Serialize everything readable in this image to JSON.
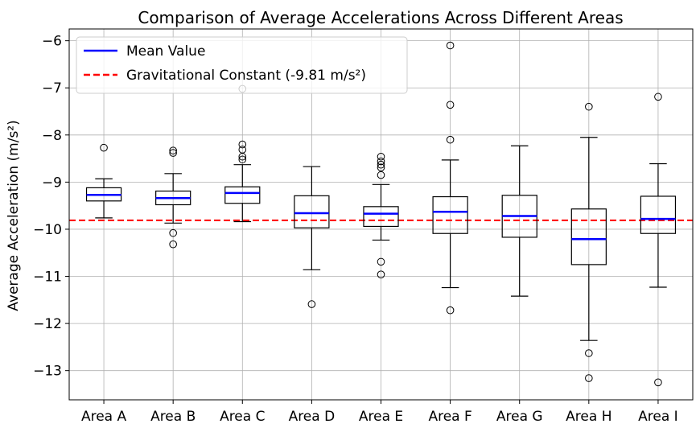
{
  "chart_data": {
    "type": "box",
    "title": "Comparison of Average Accelerations Across Different Areas",
    "xlabel": "",
    "ylabel": "Average Acceleration (m/s²)",
    "ylim": [
      -13.62,
      -5.75
    ],
    "yticks": [
      -6,
      -7,
      -8,
      -9,
      -10,
      -11,
      -12,
      -13
    ],
    "ytick_labels": [
      "−6",
      "−7",
      "−8",
      "−9",
      "−10",
      "−11",
      "−12",
      "−13"
    ],
    "grid": true,
    "legend_position": "top-left",
    "legend": [
      {
        "label": "Mean Value",
        "color": "#0000ff",
        "style": "solid"
      },
      {
        "label": "Gravitational Constant (-9.81 m/s²)",
        "color": "#ff0000",
        "style": "dashed"
      }
    ],
    "reference_line": {
      "value": -9.81,
      "color": "#ff0000"
    },
    "boxes": [
      {
        "category": "Area A",
        "whisker_low": -9.76,
        "q1": -9.4,
        "median": -9.27,
        "q3": -9.12,
        "whisker_high": -8.93,
        "mean": -9.27,
        "outliers": [
          -8.27
        ]
      },
      {
        "category": "Area B",
        "whisker_low": -9.87,
        "q1": -9.48,
        "median": -9.34,
        "q3": -9.19,
        "whisker_high": -8.82,
        "mean": -9.34,
        "outliers": [
          -8.33,
          -8.38,
          -10.08,
          -10.32
        ]
      },
      {
        "category": "Area C",
        "whisker_low": -9.84,
        "q1": -9.45,
        "median": -9.23,
        "q3": -9.1,
        "whisker_high": -8.63,
        "mean": -9.23,
        "outliers": [
          -7.02,
          -8.2,
          -8.31,
          -8.46,
          -8.52
        ]
      },
      {
        "category": "Area D",
        "whisker_low": -10.86,
        "q1": -9.97,
        "median": -9.66,
        "q3": -9.29,
        "whisker_high": -8.67,
        "mean": -9.66,
        "outliers": [
          -11.59
        ]
      },
      {
        "category": "Area E",
        "whisker_low": -10.23,
        "q1": -9.94,
        "median": -9.67,
        "q3": -9.52,
        "whisker_high": -9.05,
        "mean": -9.67,
        "outliers": [
          -8.46,
          -8.56,
          -8.63,
          -8.69,
          -8.85,
          -10.69,
          -10.96
        ]
      },
      {
        "category": "Area F",
        "whisker_low": -11.24,
        "q1": -10.09,
        "median": -9.63,
        "q3": -9.31,
        "whisker_high": -8.53,
        "mean": -9.63,
        "outliers": [
          -6.1,
          -7.36,
          -8.1,
          -11.72
        ]
      },
      {
        "category": "Area G",
        "whisker_low": -11.42,
        "q1": -10.17,
        "median": -9.72,
        "q3": -9.28,
        "whisker_high": -8.23,
        "mean": -9.72,
        "outliers": []
      },
      {
        "category": "Area H",
        "whisker_low": -12.36,
        "q1": -10.75,
        "median": -10.21,
        "q3": -9.57,
        "whisker_high": -8.05,
        "mean": -10.21,
        "outliers": [
          -7.4,
          -12.63,
          -13.16
        ]
      },
      {
        "category": "Area I",
        "whisker_low": -11.23,
        "q1": -10.09,
        "median": -9.78,
        "q3": -9.3,
        "whisker_high": -8.61,
        "mean": -9.78,
        "outliers": [
          -7.19,
          -13.25
        ]
      }
    ]
  },
  "colors": {
    "mean_line": "#0000ff",
    "reference_line": "#ff0000",
    "grid": "#b0b0b0",
    "box_edge": "#000000"
  }
}
